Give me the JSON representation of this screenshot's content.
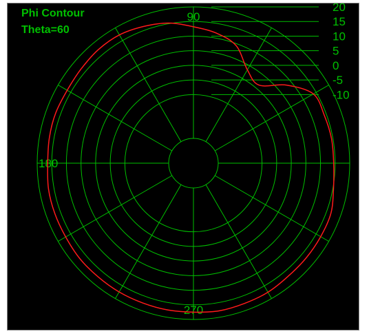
{
  "chart_data": {
    "type": "polar-line",
    "title": "Phi Contour",
    "subtitle": "Theta=60",
    "angle_labels": [
      {
        "angle": 90,
        "text": "90"
      },
      {
        "angle": 180,
        "text": "180"
      },
      {
        "angle": 270,
        "text": "270"
      }
    ],
    "radial_ticks": [
      20,
      15,
      10,
      5,
      0,
      -5,
      -10
    ],
    "rlim": [
      -25,
      20
    ],
    "angle_gridlines_deg": [
      0,
      30,
      60,
      90,
      120,
      150,
      180,
      210,
      240,
      270,
      300,
      330
    ],
    "grid": true,
    "colors": {
      "background": "#000000",
      "grid": "#00c000",
      "series": "#ff1a1a"
    },
    "series": [
      {
        "angles_deg": [
          0,
          10,
          20,
          30,
          40,
          50,
          60,
          70,
          80,
          90,
          100,
          110,
          120,
          130,
          140,
          150,
          160,
          170,
          180,
          190,
          200,
          210,
          220,
          230,
          240,
          250,
          260,
          270,
          280,
          290,
          300,
          310,
          320,
          330,
          340,
          350,
          360
        ],
        "values": [
          14.5,
          14.5,
          14.2,
          13.9,
          8.1,
          1.4,
          3.4,
          9.3,
          11.7,
          13.2,
          15.2,
          16.3,
          17.2,
          17.2,
          16.7,
          16.4,
          16.7,
          16.6,
          16.4,
          16.9,
          17.0,
          17.0,
          17.3,
          17.3,
          17.4,
          17.4,
          17.5,
          17.5,
          17.8,
          17.6,
          17.5,
          17.0,
          16.9,
          16.8,
          16.6,
          15.2,
          14.5
        ]
      }
    ]
  }
}
